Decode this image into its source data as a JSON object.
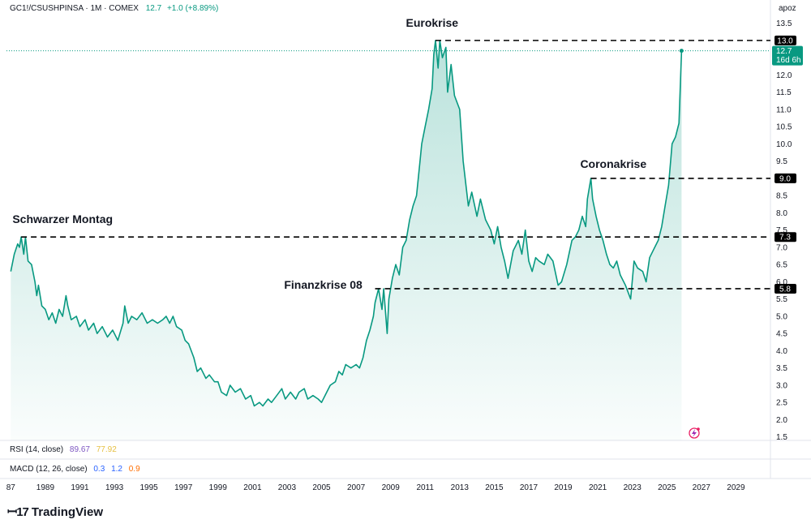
{
  "header": {
    "symbol": "GC1!/CSUSHPINSA · 1M · COMEX",
    "last_value": "12.7",
    "change": "+1.0 (+8.89%)"
  },
  "scale_mode": "apoz",
  "rsi": {
    "label": "RSI (14, close)",
    "value1": "89.67",
    "value2": "77.92"
  },
  "macd": {
    "label": "MACD (12, 26, close)",
    "value1": "0.3",
    "value2": "1.2",
    "value3": "0.9"
  },
  "brand": {
    "name": "TradingView"
  },
  "colors": {
    "line": "#089981",
    "fill": "#089981",
    "rsi1": "#7e57c2",
    "rsi2": "#e6c042",
    "macd1": "#2962ff",
    "macd2": "#2962ff",
    "macd3": "#ff6d00",
    "label_bg": "#000000"
  },
  "chart_data": {
    "type": "area",
    "title": "GC1!/CSUSHPINSA · 1M · COMEX",
    "xlabel": "",
    "ylabel": "",
    "xlim": [
      1986.75,
      2031.0
    ],
    "ylim": [
      1.4,
      13.75
    ],
    "x_ticks": [
      "87",
      "1989",
      "1991",
      "1993",
      "1995",
      "1997",
      "1999",
      "2001",
      "2003",
      "2005",
      "2007",
      "2009",
      "2011",
      "2013",
      "2015",
      "2017",
      "2019",
      "2021",
      "2023",
      "2025",
      "2027",
      "2029"
    ],
    "y_ticks": [
      "1.5",
      "2.0",
      "2.5",
      "3.0",
      "3.5",
      "4.0",
      "4.5",
      "5.0",
      "5.5",
      "6.0",
      "6.5",
      "7.0",
      "7.5",
      "8.0",
      "8.5",
      "9.0",
      "9.5",
      "10.0",
      "10.5",
      "11.0",
      "11.5",
      "12.0",
      "12.5",
      "13.0",
      "13.5"
    ],
    "series": [
      {
        "name": "GC1!/CSUSHPINSA",
        "points": [
          [
            1987.0,
            6.3
          ],
          [
            1987.2,
            6.8
          ],
          [
            1987.4,
            7.1
          ],
          [
            1987.5,
            7.0
          ],
          [
            1987.6,
            7.3
          ],
          [
            1987.75,
            6.8
          ],
          [
            1987.85,
            7.3
          ],
          [
            1988.0,
            6.6
          ],
          [
            1988.2,
            6.5
          ],
          [
            1988.4,
            6.0
          ],
          [
            1988.5,
            5.6
          ],
          [
            1988.6,
            5.9
          ],
          [
            1988.8,
            5.3
          ],
          [
            1989.0,
            5.2
          ],
          [
            1989.2,
            4.9
          ],
          [
            1989.4,
            5.1
          ],
          [
            1989.6,
            4.8
          ],
          [
            1989.8,
            5.2
          ],
          [
            1990.0,
            5.0
          ],
          [
            1990.2,
            5.6
          ],
          [
            1990.3,
            5.3
          ],
          [
            1990.5,
            4.9
          ],
          [
            1990.8,
            5.0
          ],
          [
            1991.0,
            4.7
          ],
          [
            1991.3,
            4.9
          ],
          [
            1991.5,
            4.6
          ],
          [
            1991.8,
            4.8
          ],
          [
            1992.0,
            4.5
          ],
          [
            1992.3,
            4.7
          ],
          [
            1992.6,
            4.4
          ],
          [
            1992.9,
            4.6
          ],
          [
            1993.2,
            4.3
          ],
          [
            1993.5,
            4.8
          ],
          [
            1993.6,
            5.3
          ],
          [
            1993.8,
            4.8
          ],
          [
            1994.0,
            5.0
          ],
          [
            1994.3,
            4.9
          ],
          [
            1994.6,
            5.1
          ],
          [
            1994.9,
            4.8
          ],
          [
            1995.2,
            4.9
          ],
          [
            1995.5,
            4.8
          ],
          [
            1995.8,
            4.9
          ],
          [
            1996.0,
            5.0
          ],
          [
            1996.2,
            4.8
          ],
          [
            1996.4,
            5.0
          ],
          [
            1996.6,
            4.7
          ],
          [
            1996.9,
            4.6
          ],
          [
            1997.1,
            4.3
          ],
          [
            1997.3,
            4.2
          ],
          [
            1997.6,
            3.8
          ],
          [
            1997.8,
            3.4
          ],
          [
            1998.0,
            3.5
          ],
          [
            1998.3,
            3.2
          ],
          [
            1998.5,
            3.3
          ],
          [
            1998.8,
            3.1
          ],
          [
            1999.0,
            3.1
          ],
          [
            1999.2,
            2.8
          ],
          [
            1999.5,
            2.7
          ],
          [
            1999.7,
            3.0
          ],
          [
            2000.0,
            2.8
          ],
          [
            2000.3,
            2.9
          ],
          [
            2000.6,
            2.6
          ],
          [
            2000.9,
            2.7
          ],
          [
            2001.1,
            2.4
          ],
          [
            2001.4,
            2.5
          ],
          [
            2001.6,
            2.4
          ],
          [
            2001.9,
            2.6
          ],
          [
            2002.1,
            2.5
          ],
          [
            2002.4,
            2.7
          ],
          [
            2002.7,
            2.9
          ],
          [
            2002.9,
            2.6
          ],
          [
            2003.2,
            2.8
          ],
          [
            2003.5,
            2.6
          ],
          [
            2003.7,
            2.8
          ],
          [
            2004.0,
            2.9
          ],
          [
            2004.2,
            2.6
          ],
          [
            2004.5,
            2.7
          ],
          [
            2004.8,
            2.6
          ],
          [
            2005.0,
            2.5
          ],
          [
            2005.3,
            2.8
          ],
          [
            2005.5,
            3.0
          ],
          [
            2005.8,
            3.1
          ],
          [
            2006.0,
            3.4
          ],
          [
            2006.2,
            3.3
          ],
          [
            2006.4,
            3.6
          ],
          [
            2006.7,
            3.5
          ],
          [
            2007.0,
            3.6
          ],
          [
            2007.2,
            3.5
          ],
          [
            2007.4,
            3.8
          ],
          [
            2007.6,
            4.3
          ],
          [
            2007.8,
            4.6
          ],
          [
            2008.0,
            5.0
          ],
          [
            2008.1,
            5.4
          ],
          [
            2008.3,
            5.8
          ],
          [
            2008.5,
            5.2
          ],
          [
            2008.6,
            5.8
          ],
          [
            2008.8,
            4.5
          ],
          [
            2008.9,
            5.5
          ],
          [
            2009.1,
            6.1
          ],
          [
            2009.3,
            6.5
          ],
          [
            2009.5,
            6.2
          ],
          [
            2009.7,
            7.0
          ],
          [
            2009.9,
            7.2
          ],
          [
            2010.1,
            7.8
          ],
          [
            2010.3,
            8.2
          ],
          [
            2010.5,
            8.5
          ],
          [
            2010.7,
            9.5
          ],
          [
            2010.8,
            10.0
          ],
          [
            2011.0,
            10.5
          ],
          [
            2011.2,
            11.0
          ],
          [
            2011.4,
            11.6
          ],
          [
            2011.5,
            12.6
          ],
          [
            2011.6,
            13.0
          ],
          [
            2011.75,
            12.2
          ],
          [
            2011.85,
            13.0
          ],
          [
            2012.0,
            12.5
          ],
          [
            2012.2,
            12.8
          ],
          [
            2012.3,
            11.5
          ],
          [
            2012.5,
            12.3
          ],
          [
            2012.7,
            11.4
          ],
          [
            2013.0,
            11.0
          ],
          [
            2013.2,
            9.5
          ],
          [
            2013.5,
            8.2
          ],
          [
            2013.7,
            8.6
          ],
          [
            2014.0,
            7.9
          ],
          [
            2014.2,
            8.4
          ],
          [
            2014.5,
            7.8
          ],
          [
            2014.8,
            7.5
          ],
          [
            2015.0,
            7.1
          ],
          [
            2015.2,
            7.6
          ],
          [
            2015.4,
            7.0
          ],
          [
            2015.6,
            6.6
          ],
          [
            2015.8,
            6.1
          ],
          [
            2016.1,
            6.9
          ],
          [
            2016.4,
            7.2
          ],
          [
            2016.6,
            6.8
          ],
          [
            2016.8,
            7.5
          ],
          [
            2017.0,
            6.6
          ],
          [
            2017.2,
            6.3
          ],
          [
            2017.4,
            6.7
          ],
          [
            2017.6,
            6.6
          ],
          [
            2017.9,
            6.5
          ],
          [
            2018.1,
            6.8
          ],
          [
            2018.4,
            6.6
          ],
          [
            2018.7,
            5.9
          ],
          [
            2018.9,
            6.0
          ],
          [
            2019.2,
            6.5
          ],
          [
            2019.5,
            7.2
          ],
          [
            2019.7,
            7.3
          ],
          [
            2019.9,
            7.5
          ],
          [
            2020.1,
            7.9
          ],
          [
            2020.3,
            7.6
          ],
          [
            2020.4,
            8.4
          ],
          [
            2020.6,
            9.0
          ],
          [
            2020.7,
            8.4
          ],
          [
            2020.9,
            7.9
          ],
          [
            2021.1,
            7.5
          ],
          [
            2021.3,
            7.2
          ],
          [
            2021.5,
            6.8
          ],
          [
            2021.7,
            6.5
          ],
          [
            2021.9,
            6.4
          ],
          [
            2022.1,
            6.6
          ],
          [
            2022.3,
            6.2
          ],
          [
            2022.6,
            5.9
          ],
          [
            2022.9,
            5.5
          ],
          [
            2023.1,
            6.6
          ],
          [
            2023.3,
            6.4
          ],
          [
            2023.6,
            6.3
          ],
          [
            2023.8,
            6.0
          ],
          [
            2024.0,
            6.7
          ],
          [
            2024.2,
            6.9
          ],
          [
            2024.5,
            7.2
          ],
          [
            2024.7,
            7.6
          ],
          [
            2024.9,
            8.2
          ],
          [
            2025.1,
            8.8
          ],
          [
            2025.3,
            10.0
          ],
          [
            2025.5,
            10.2
          ],
          [
            2025.7,
            10.6
          ],
          [
            2025.85,
            12.7
          ]
        ]
      }
    ],
    "reference_lines": [
      {
        "value": 13.0,
        "label": "13.0",
        "x_start": 2011.6
      },
      {
        "value": 9.0,
        "label": "9.0",
        "x_start": 2020.6
      },
      {
        "value": 7.3,
        "label": "7.3",
        "x_start": 1987.6
      },
      {
        "value": 5.8,
        "label": "5.8",
        "x_start": 2008.1
      }
    ],
    "annotations": [
      {
        "text": "Eurokrise",
        "x": 2011.4,
        "y": 13.4
      },
      {
        "text": "Coronakrise",
        "x": 2021.9,
        "y": 9.3
      },
      {
        "text": "Schwarzer Montag",
        "x": 1990.0,
        "y": 7.7
      },
      {
        "text": "Finanzkrise 08",
        "x": 2005.1,
        "y": 5.8
      }
    ],
    "last_price": {
      "value": 12.7,
      "label": "12.7",
      "countdown": "16d 6h",
      "x": 2025.85
    }
  }
}
